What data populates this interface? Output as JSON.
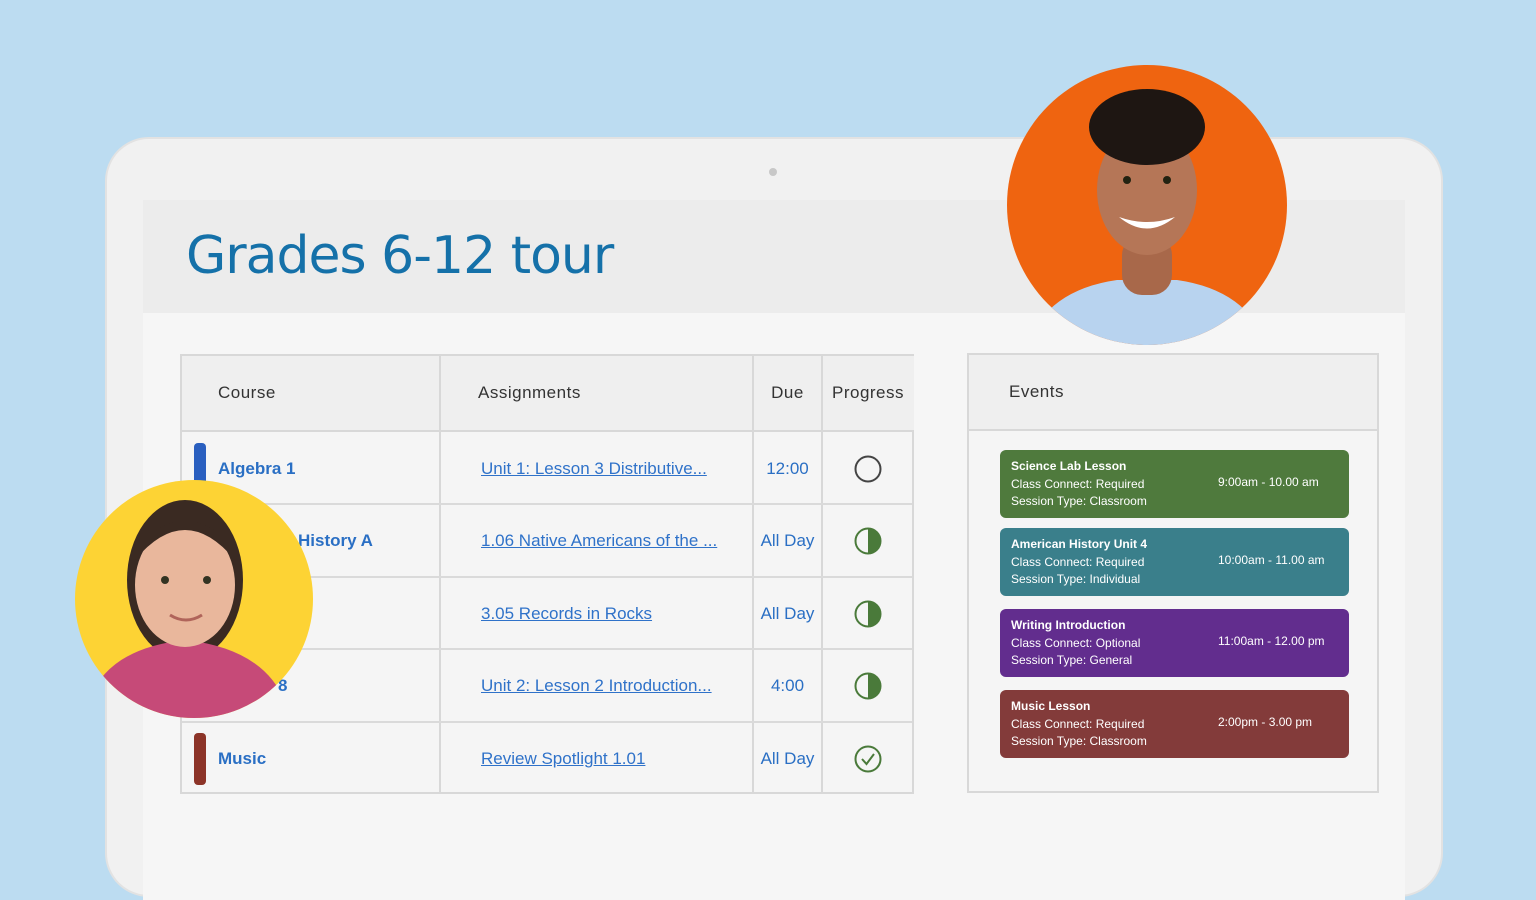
{
  "page": {
    "title": "Grades 6-12 tour"
  },
  "table": {
    "headers": {
      "course": "Course",
      "assignments": "Assignments",
      "due": "Due",
      "progress": "Progress"
    },
    "rows": [
      {
        "course": "Algebra 1",
        "color": "#2a5fbf",
        "assignment": "Unit 1: Lesson 3 Distributive...",
        "due": "12:00",
        "progress": "not-started"
      },
      {
        "course": "History A",
        "color": "",
        "assignment": "1.06 Native Americans of the ...",
        "due": "All Day",
        "progress": "half"
      },
      {
        "course": "",
        "color": "",
        "assignment": "3.05 Records in Rocks",
        "due": "All Day",
        "progress": "half"
      },
      {
        "course": "8",
        "color": "",
        "assignment": "Unit 2: Lesson 2 Introduction...",
        "due": "4:00",
        "progress": "half"
      },
      {
        "course": "Music",
        "color": "#8c3428",
        "assignment": "Review Spotlight 1.01",
        "due": "All Day",
        "progress": "complete"
      }
    ]
  },
  "events": {
    "header": "Events",
    "items": [
      {
        "title": "Science Lab Lesson",
        "connect": "Class Connect: Required",
        "session": "Session Type: Classroom",
        "time": "9:00am - 10.00 am",
        "color": "#4f7a3d"
      },
      {
        "title": "American History Unit 4",
        "connect": "Class Connect: Required",
        "session": "Session Type: Individual",
        "time": "10:00am - 11.00 am",
        "color": "#3a7f8b"
      },
      {
        "title": "Writing Introduction",
        "connect": "Class Connect: Optional",
        "session": "Session Type: General",
        "time": "11:00am - 12.00 pm",
        "color": "#622d8e"
      },
      {
        "title": "Music Lesson",
        "connect": "Class Connect: Required",
        "session": "Session Type: Classroom",
        "time": "2:00pm - 3.00 pm",
        "color": "#833b3a"
      }
    ]
  },
  "colors": {
    "background": "#bcdcf1",
    "title": "#1571a9",
    "link": "#2f72c9",
    "progress": "#4a7a3a",
    "avatar_boy_bg": "#ef6410",
    "avatar_girl_bg": "#fdd334"
  }
}
